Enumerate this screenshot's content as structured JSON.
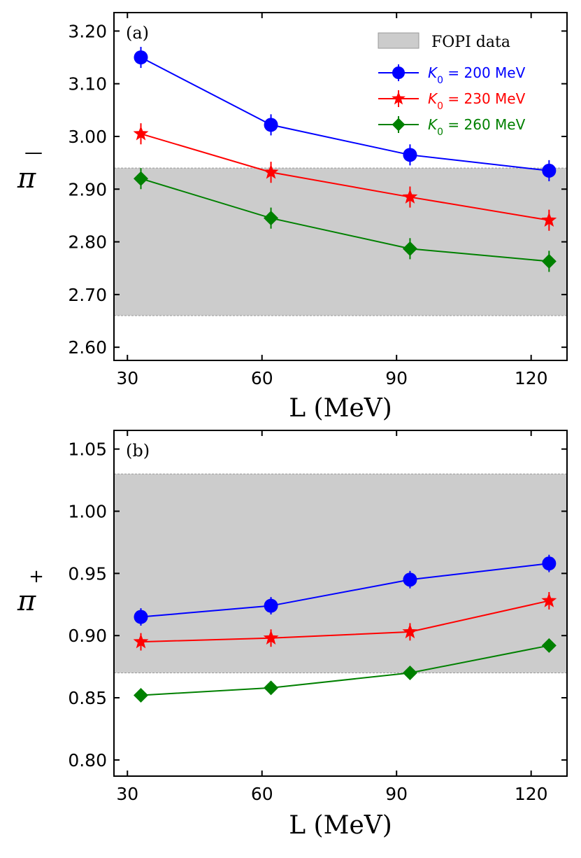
{
  "chart_data": [
    {
      "type": "line",
      "panel_label": "(a)",
      "xlabel": "L (MeV)",
      "ylabel": "π",
      "ylabel_sup": "—",
      "x": [
        33,
        62,
        93,
        124
      ],
      "xlim": [
        27,
        128
      ],
      "ylim": [
        2.575,
        3.235
      ],
      "xticks": [
        30,
        60,
        90,
        120
      ],
      "xtick_labels": [
        "30",
        "60",
        "90",
        "120"
      ],
      "yticks": [
        2.6,
        2.7,
        2.8,
        2.9,
        3.0,
        3.1,
        3.2
      ],
      "ytick_labels": [
        "2.60",
        "2.70",
        "2.80",
        "2.90",
        "3.00",
        "3.10",
        "3.20"
      ],
      "band": {
        "name": "FOPI data",
        "low": 2.66,
        "high": 2.94,
        "color": "#cccccc"
      },
      "series": [
        {
          "name_prefix": "K",
          "name_sub": "0",
          "name_suffix": " = 200 MeV",
          "color": "#0000ff",
          "marker": "circle",
          "values": [
            3.15,
            3.022,
            2.965,
            2.935
          ],
          "errors": [
            0.02,
            0.02,
            0.02,
            0.02
          ]
        },
        {
          "name_prefix": "K",
          "name_sub": "0",
          "name_suffix": " = 230 MeV",
          "color": "#ff0000",
          "marker": "star",
          "values": [
            3.005,
            2.932,
            2.885,
            2.841
          ],
          "errors": [
            0.02,
            0.02,
            0.02,
            0.02
          ]
        },
        {
          "name_prefix": "K",
          "name_sub": "0",
          "name_suffix": " = 260 MeV",
          "color": "#008000",
          "marker": "diamond",
          "values": [
            2.92,
            2.845,
            2.787,
            2.763
          ],
          "errors": [
            0.02,
            0.02,
            0.02,
            0.02
          ]
        }
      ],
      "legend": true
    },
    {
      "type": "line",
      "panel_label": "(b)",
      "xlabel": "L (MeV)",
      "ylabel": "π",
      "ylabel_sup": "+",
      "x": [
        33,
        62,
        93,
        124
      ],
      "xlim": [
        27,
        128
      ],
      "ylim": [
        0.787,
        1.065
      ],
      "xticks": [
        30,
        60,
        90,
        120
      ],
      "xtick_labels": [
        "30",
        "60",
        "90",
        "120"
      ],
      "yticks": [
        0.8,
        0.85,
        0.9,
        0.95,
        1.0,
        1.05
      ],
      "ytick_labels": [
        "0.80",
        "0.85",
        "0.90",
        "0.95",
        "1.00",
        "1.05"
      ],
      "band": {
        "name": "FOPI data",
        "low": 0.87,
        "high": 1.03,
        "color": "#cccccc"
      },
      "series": [
        {
          "name_prefix": "K",
          "name_sub": "0",
          "name_suffix": " = 200 MeV",
          "color": "#0000ff",
          "marker": "circle",
          "values": [
            0.915,
            0.924,
            0.945,
            0.958
          ],
          "errors": [
            0.007,
            0.007,
            0.007,
            0.007
          ]
        },
        {
          "name_prefix": "K",
          "name_sub": "0",
          "name_suffix": " = 230 MeV",
          "color": "#ff0000",
          "marker": "star",
          "values": [
            0.895,
            0.898,
            0.903,
            0.928
          ],
          "errors": [
            0.007,
            0.007,
            0.007,
            0.007
          ]
        },
        {
          "name_prefix": "K",
          "name_sub": "0",
          "name_suffix": " = 260 MeV",
          "color": "#008000",
          "marker": "diamond",
          "values": [
            0.852,
            0.858,
            0.87,
            0.892
          ],
          "errors": [
            0.0,
            0.0,
            0.0,
            0.0
          ]
        }
      ],
      "legend": false
    }
  ]
}
